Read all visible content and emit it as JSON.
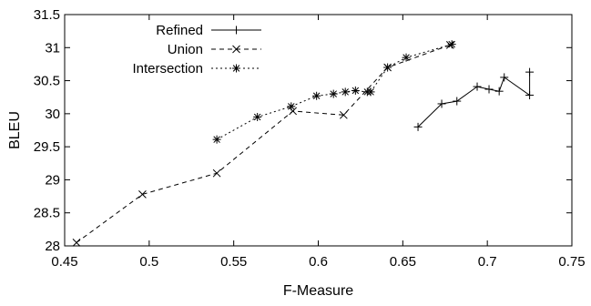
{
  "chart_data": {
    "type": "line",
    "title": "",
    "xlabel": "F-Measure",
    "ylabel": "BLEU",
    "xlim": [
      0.45,
      0.75
    ],
    "ylim": [
      28,
      31.5
    ],
    "xticks": [
      "0.45",
      "0.5",
      "0.55",
      "0.6",
      "0.65",
      "0.7",
      "0.75"
    ],
    "yticks": [
      "28",
      "28.5",
      "29",
      "29.5",
      "30",
      "30.5",
      "31",
      "31.5"
    ],
    "grid": false,
    "legend_position": "top-left",
    "series": [
      {
        "name": "Refined",
        "line_style": "solid",
        "marker": "plus",
        "x": [
          0.659,
          0.673,
          0.682,
          0.694,
          0.701,
          0.707,
          0.71,
          0.725,
          0.725
        ],
        "y": [
          29.8,
          30.15,
          30.19,
          30.41,
          30.37,
          30.34,
          30.55,
          30.28,
          30.63
        ]
      },
      {
        "name": "Union",
        "line_style": "dashed",
        "marker": "x",
        "x": [
          0.457,
          0.496,
          0.54,
          0.585,
          0.615,
          0.641,
          0.678
        ],
        "y": [
          28.05,
          28.78,
          29.1,
          30.04,
          29.98,
          30.7,
          31.04
        ]
      },
      {
        "name": "Intersection",
        "line_style": "dotted",
        "marker": "star",
        "x": [
          0.54,
          0.564,
          0.584,
          0.599,
          0.609,
          0.616,
          0.622,
          0.629,
          0.631,
          0.641,
          0.652,
          0.679
        ],
        "y": [
          29.61,
          29.95,
          30.11,
          30.27,
          30.3,
          30.33,
          30.35,
          30.33,
          30.33,
          30.7,
          30.85,
          31.05
        ]
      }
    ]
  }
}
